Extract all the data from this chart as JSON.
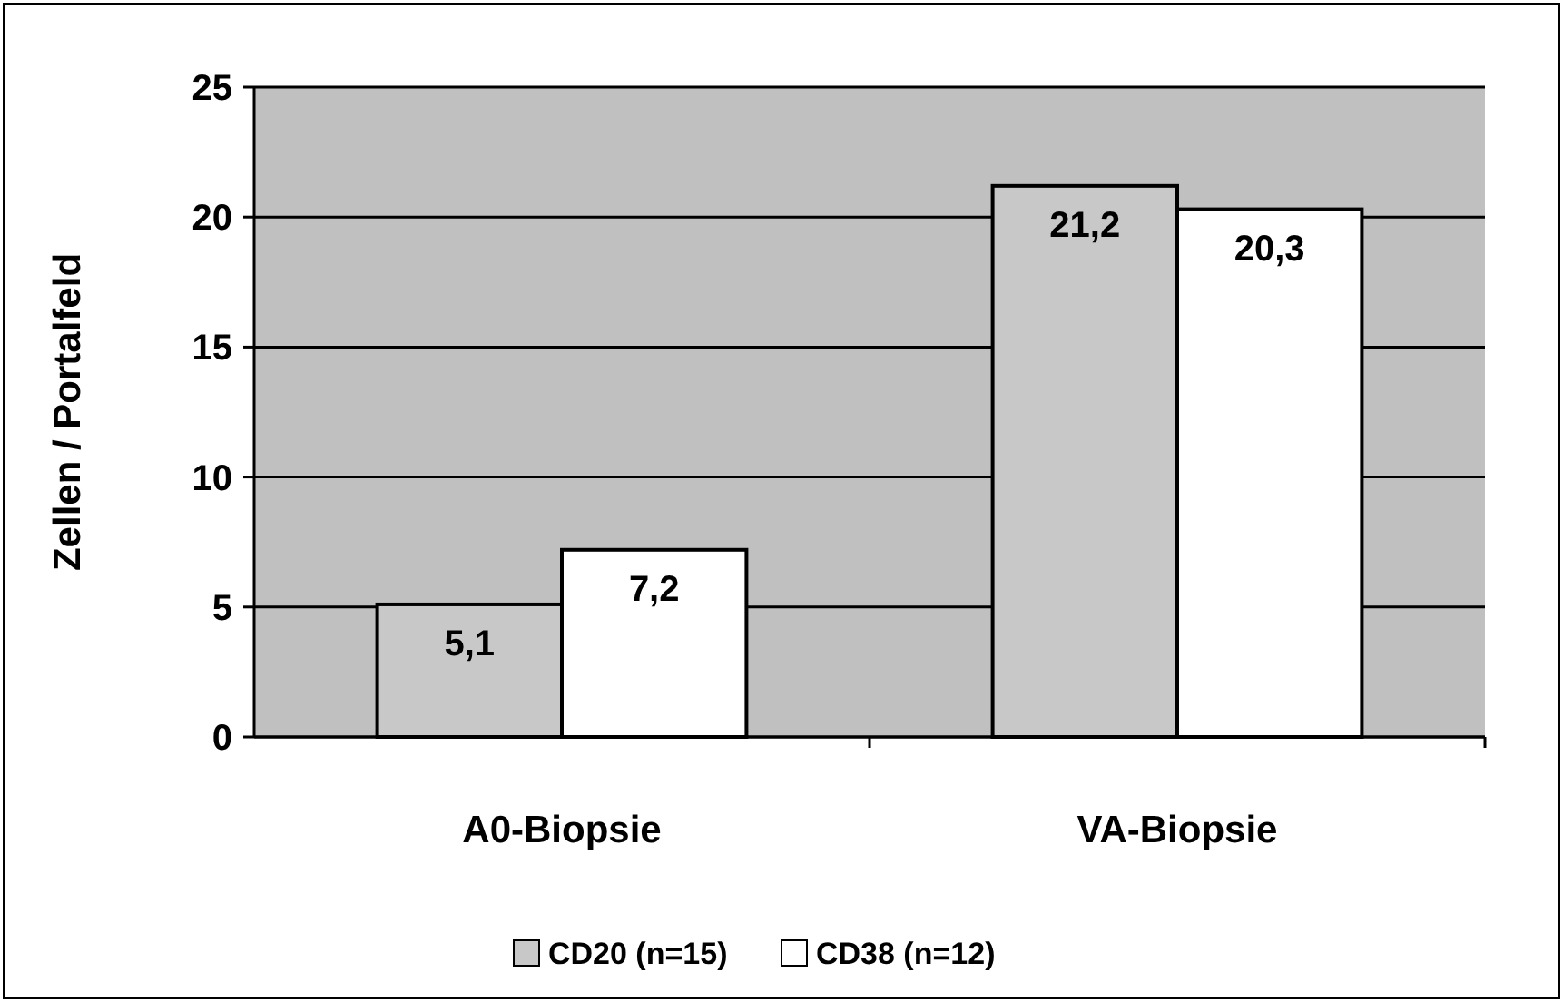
{
  "chart_data": {
    "type": "bar",
    "categories": [
      "A0-Biopsie",
      "VA-Biopsie"
    ],
    "ylabel": "Zellen / Portalfeld",
    "ylim": [
      0,
      25
    ],
    "yticks": [
      0,
      5,
      10,
      15,
      20,
      25
    ],
    "grid": "y",
    "legend": "bottom",
    "series": [
      {
        "name": "CD20 (n=15)",
        "color": "#c8c8c8",
        "values": [
          5.1,
          21.2
        ],
        "value_labels": [
          "5,1",
          "21,2"
        ]
      },
      {
        "name": "CD38 (n=12)",
        "color": "#ffffff",
        "values": [
          7.2,
          20.3
        ],
        "value_labels": [
          "7,2",
          "20,3"
        ]
      }
    ]
  }
}
